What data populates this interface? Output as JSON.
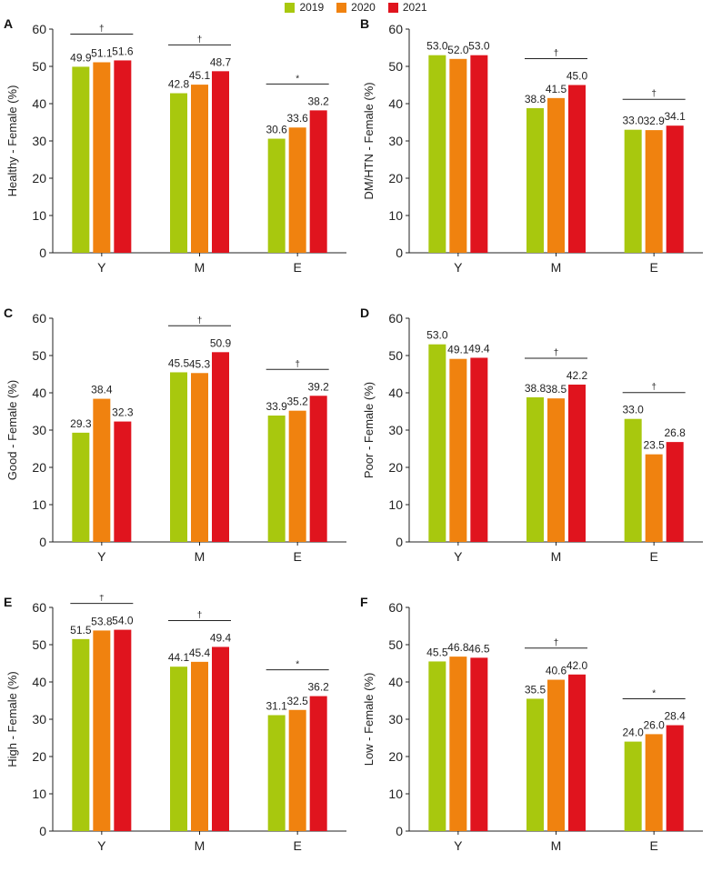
{
  "legend": {
    "series": [
      {
        "name": "2019",
        "color": "#a8c80e"
      },
      {
        "name": "2020",
        "color": "#f0820f"
      },
      {
        "name": "2021",
        "color": "#e0141e"
      }
    ]
  },
  "chart_data": [
    {
      "panel": "A",
      "type": "bar",
      "ylabel": "Healthy - Female (%)",
      "categories": [
        "Y",
        "M",
        "E"
      ],
      "ylim": [
        0,
        60
      ],
      "yticks": [
        0,
        10,
        20,
        30,
        40,
        50,
        60
      ],
      "series": [
        {
          "name": "2019",
          "values": [
            49.9,
            42.8,
            30.6
          ]
        },
        {
          "name": "2020",
          "values": [
            51.1,
            45.1,
            33.6
          ]
        },
        {
          "name": "2021",
          "values": [
            51.6,
            48.7,
            38.2
          ]
        }
      ],
      "labels": [
        [
          "49.9",
          "42.8",
          "30.6"
        ],
        [
          "51.1",
          "45.1",
          "33.6"
        ],
        [
          "51.6",
          "48.7",
          "38.2"
        ]
      ],
      "sig": [
        "†",
        "†",
        "*"
      ]
    },
    {
      "panel": "B",
      "type": "bar",
      "ylabel": "DM/HTN - Female (%)",
      "categories": [
        "Y",
        "M",
        "E"
      ],
      "ylim": [
        0,
        60
      ],
      "yticks": [
        0,
        10,
        20,
        30,
        40,
        50,
        60
      ],
      "series": [
        {
          "name": "2019",
          "values": [
            53.0,
            38.8,
            33.0
          ]
        },
        {
          "name": "2020",
          "values": [
            52.0,
            41.5,
            32.9
          ]
        },
        {
          "name": "2021",
          "values": [
            53.0,
            45.0,
            34.1
          ]
        }
      ],
      "labels": [
        [
          "53.0",
          "38.8",
          "33.0"
        ],
        [
          "52.0",
          "41.5",
          "32.9"
        ],
        [
          "53.0",
          "45.0",
          "34.1"
        ]
      ],
      "sig": [
        "",
        "†",
        "†"
      ]
    },
    {
      "panel": "C",
      "type": "bar",
      "ylabel": "Good - Female (%)",
      "categories": [
        "Y",
        "M",
        "E"
      ],
      "ylim": [
        0,
        60
      ],
      "yticks": [
        0,
        10,
        20,
        30,
        40,
        50,
        60
      ],
      "series": [
        {
          "name": "2019",
          "values": [
            29.3,
            45.5,
            33.9
          ]
        },
        {
          "name": "2020",
          "values": [
            38.4,
            45.3,
            35.2
          ]
        },
        {
          "name": "2021",
          "values": [
            32.3,
            50.9,
            39.2
          ]
        }
      ],
      "labels": [
        [
          "29.3",
          "45.5",
          "33.9"
        ],
        [
          "38.4",
          "45.3",
          "35.2"
        ],
        [
          "32.3",
          "50.9",
          "39.2"
        ]
      ],
      "sig": [
        "",
        "†",
        "†"
      ]
    },
    {
      "panel": "D",
      "type": "bar",
      "ylabel": "Poor - Female (%)",
      "categories": [
        "Y",
        "M",
        "E"
      ],
      "ylim": [
        0,
        60
      ],
      "yticks": [
        0,
        10,
        20,
        30,
        40,
        50,
        60
      ],
      "series": [
        {
          "name": "2019",
          "values": [
            53.0,
            38.8,
            33.0
          ]
        },
        {
          "name": "2020",
          "values": [
            49.1,
            38.5,
            23.5
          ]
        },
        {
          "name": "2021",
          "values": [
            49.4,
            42.2,
            26.8
          ]
        }
      ],
      "labels": [
        [
          "53.0",
          "38.8",
          "33.0"
        ],
        [
          "49.1",
          "38.5",
          "23.5"
        ],
        [
          "49.4",
          "42.2",
          "26.8"
        ]
      ],
      "sig": [
        "",
        "†",
        "†"
      ]
    },
    {
      "panel": "E",
      "type": "bar",
      "ylabel": "High - Female (%)",
      "categories": [
        "Y",
        "M",
        "E"
      ],
      "ylim": [
        0,
        60
      ],
      "yticks": [
        0,
        10,
        20,
        30,
        40,
        50,
        60
      ],
      "series": [
        {
          "name": "2019",
          "values": [
            51.5,
            44.1,
            31.1
          ]
        },
        {
          "name": "2020",
          "values": [
            53.8,
            45.4,
            32.5
          ]
        },
        {
          "name": "2021",
          "values": [
            54.0,
            49.4,
            36.2
          ]
        }
      ],
      "labels": [
        [
          "51.5",
          "44.1",
          "31.1"
        ],
        [
          "53.8",
          "45.4",
          "32.5"
        ],
        [
          "54.0",
          "49.4",
          "36.2"
        ]
      ],
      "sig": [
        "†",
        "†",
        "*"
      ]
    },
    {
      "panel": "F",
      "type": "bar",
      "ylabel": "Low - Female (%)",
      "categories": [
        "Y",
        "M",
        "E"
      ],
      "ylim": [
        0,
        60
      ],
      "yticks": [
        0,
        10,
        20,
        30,
        40,
        50,
        60
      ],
      "series": [
        {
          "name": "2019",
          "values": [
            45.5,
            35.5,
            24.0
          ]
        },
        {
          "name": "2020",
          "values": [
            46.8,
            40.6,
            26.0
          ]
        },
        {
          "name": "2021",
          "values": [
            46.5,
            42.0,
            28.4
          ]
        }
      ],
      "labels": [
        [
          "45.5",
          "35.5",
          "24.0"
        ],
        [
          "46.8",
          "40.6",
          "26.0"
        ],
        [
          "46.5",
          "42.0",
          "28.4"
        ]
      ],
      "sig": [
        "",
        "†",
        "*"
      ]
    }
  ]
}
